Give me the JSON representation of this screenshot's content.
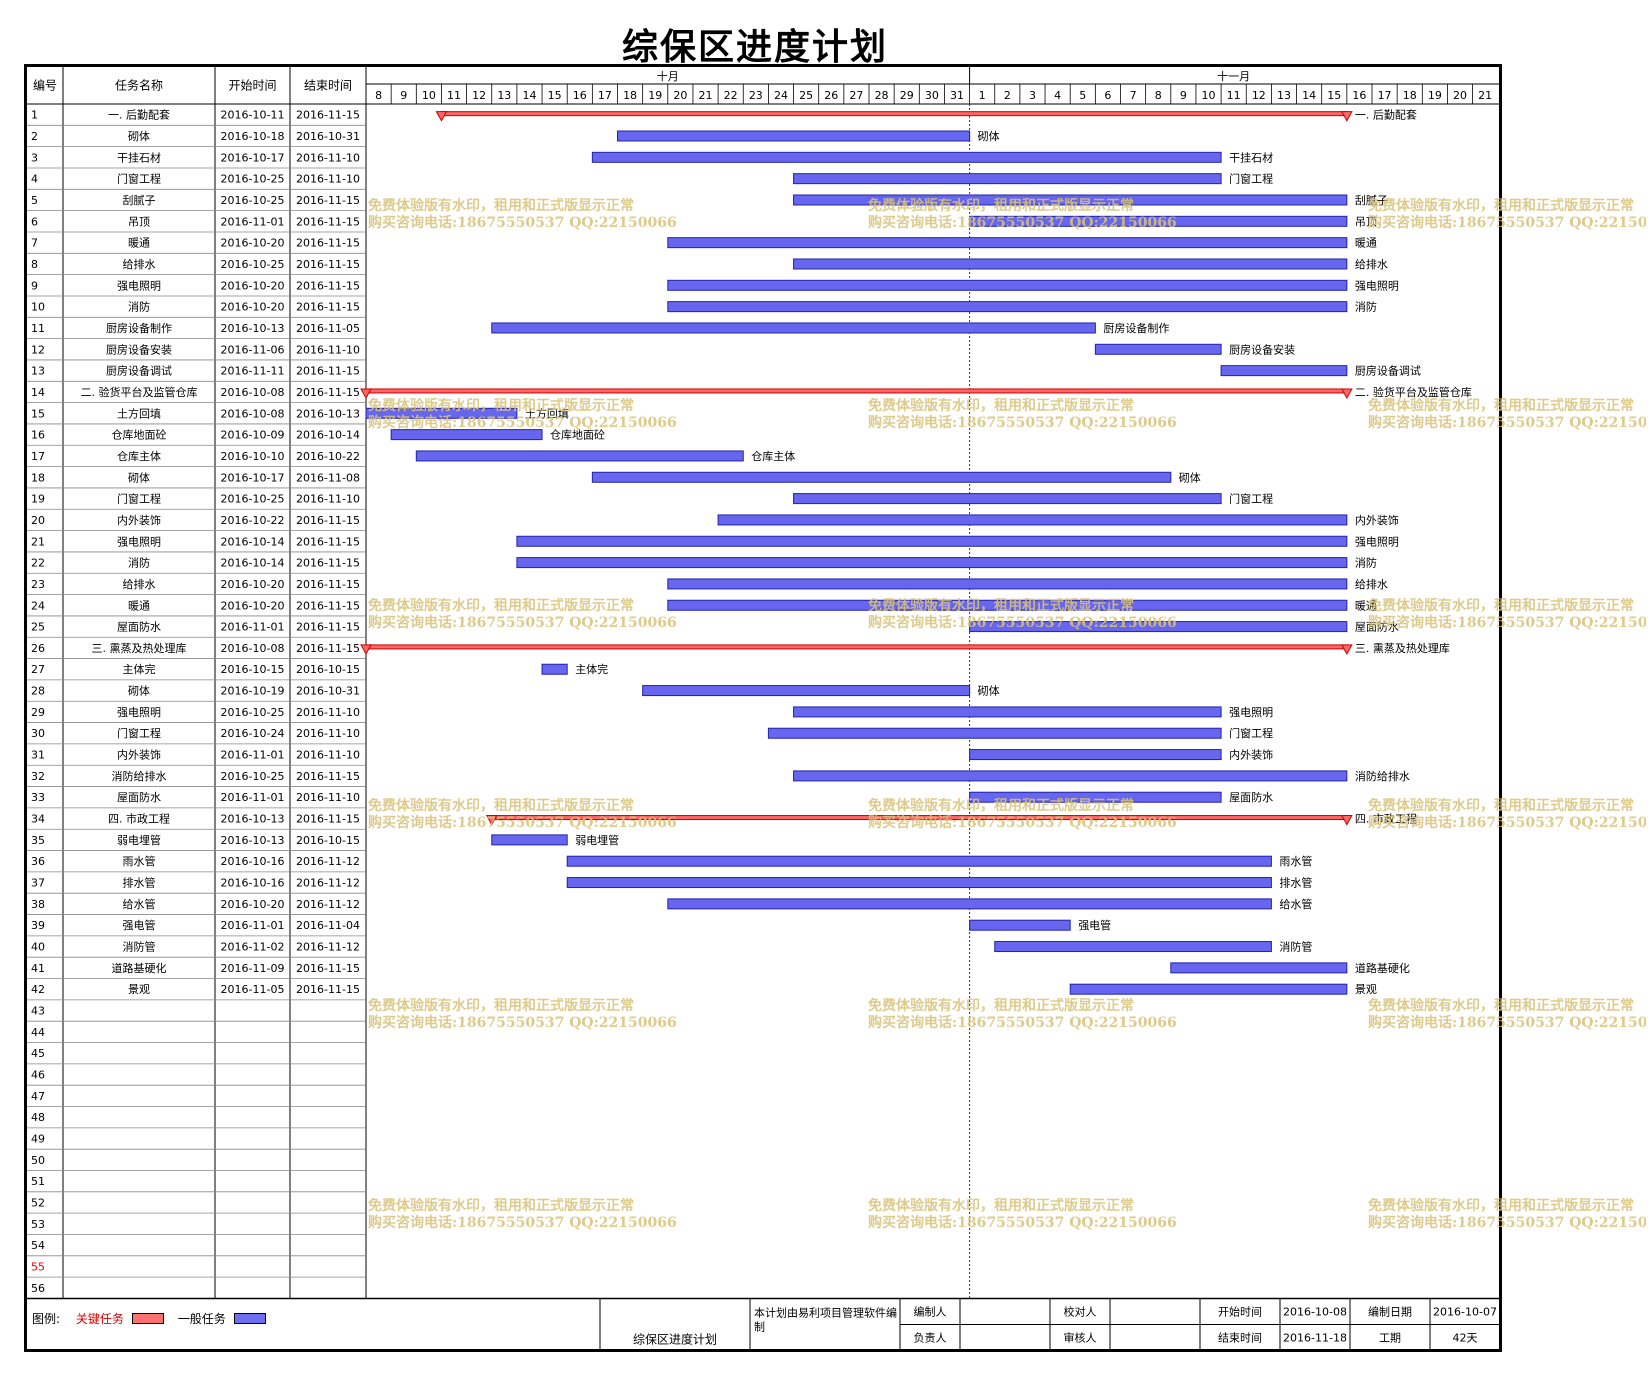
{
  "title": "综保区进度计划",
  "columns": {
    "no": "编号",
    "name": "任务名称",
    "start": "开始时间",
    "end": "结束时间"
  },
  "months": [
    {
      "label": "十月",
      "days": [
        "8",
        "9",
        "10",
        "11",
        "12",
        "13",
        "14",
        "15",
        "16",
        "17",
        "18",
        "19",
        "20",
        "21",
        "22",
        "23",
        "24",
        "25",
        "26",
        "27",
        "28",
        "29",
        "30",
        "31"
      ]
    },
    {
      "label": "十一月",
      "days": [
        "1",
        "2",
        "3",
        "4",
        "5",
        "6",
        "7",
        "8",
        "9",
        "10",
        "11",
        "12",
        "13",
        "14",
        "15",
        "16",
        "17",
        "18",
        "19",
        "20",
        "21"
      ]
    }
  ],
  "colors": {
    "critical": "#ff6666",
    "normal": "#6666ee",
    "grid": "#888888"
  },
  "tasks": [
    {
      "no": "1",
      "name": "一. 后勤配套",
      "start": "2016-10-11",
      "end": "2016-11-15",
      "type": "summary"
    },
    {
      "no": "2",
      "name": "砌体",
      "start": "2016-10-18",
      "end": "2016-10-31",
      "type": "task"
    },
    {
      "no": "3",
      "name": "干挂石材",
      "start": "2016-10-17",
      "end": "2016-11-10",
      "type": "task"
    },
    {
      "no": "4",
      "name": "门窗工程",
      "start": "2016-10-25",
      "end": "2016-11-10",
      "type": "task"
    },
    {
      "no": "5",
      "name": "刮腻子",
      "start": "2016-10-25",
      "end": "2016-11-15",
      "type": "task"
    },
    {
      "no": "6",
      "name": "吊顶",
      "start": "2016-11-01",
      "end": "2016-11-15",
      "type": "task"
    },
    {
      "no": "7",
      "name": "暖通",
      "start": "2016-10-20",
      "end": "2016-11-15",
      "type": "task"
    },
    {
      "no": "8",
      "name": "给排水",
      "start": "2016-10-25",
      "end": "2016-11-15",
      "type": "task"
    },
    {
      "no": "9",
      "name": "强电照明",
      "start": "2016-10-20",
      "end": "2016-11-15",
      "type": "task"
    },
    {
      "no": "10",
      "name": "消防",
      "start": "2016-10-20",
      "end": "2016-11-15",
      "type": "task"
    },
    {
      "no": "11",
      "name": "厨房设备制作",
      "start": "2016-10-13",
      "end": "2016-11-05",
      "type": "task"
    },
    {
      "no": "12",
      "name": "厨房设备安装",
      "start": "2016-11-06",
      "end": "2016-11-10",
      "type": "task"
    },
    {
      "no": "13",
      "name": "厨房设备调试",
      "start": "2016-11-11",
      "end": "2016-11-15",
      "type": "task"
    },
    {
      "no": "14",
      "name": "二. 验货平台及监管仓库",
      "start": "2016-10-08",
      "end": "2016-11-15",
      "type": "summary"
    },
    {
      "no": "15",
      "name": "土方回填",
      "start": "2016-10-08",
      "end": "2016-10-13",
      "type": "task"
    },
    {
      "no": "16",
      "name": "仓库地面砼",
      "start": "2016-10-09",
      "end": "2016-10-14",
      "type": "task"
    },
    {
      "no": "17",
      "name": "仓库主体",
      "start": "2016-10-10",
      "end": "2016-10-22",
      "type": "task"
    },
    {
      "no": "18",
      "name": "砌体",
      "start": "2016-10-17",
      "end": "2016-11-08",
      "type": "task"
    },
    {
      "no": "19",
      "name": "门窗工程",
      "start": "2016-10-25",
      "end": "2016-11-10",
      "type": "task"
    },
    {
      "no": "20",
      "name": "内外装饰",
      "start": "2016-10-22",
      "end": "2016-11-15",
      "type": "task"
    },
    {
      "no": "21",
      "name": "强电照明",
      "start": "2016-10-14",
      "end": "2016-11-15",
      "type": "task"
    },
    {
      "no": "22",
      "name": "消防",
      "start": "2016-10-14",
      "end": "2016-11-15",
      "type": "task"
    },
    {
      "no": "23",
      "name": "给排水",
      "start": "2016-10-20",
      "end": "2016-11-15",
      "type": "task"
    },
    {
      "no": "24",
      "name": "暖通",
      "start": "2016-10-20",
      "end": "2016-11-15",
      "type": "task"
    },
    {
      "no": "25",
      "name": "屋面防水",
      "start": "2016-11-01",
      "end": "2016-11-15",
      "type": "task"
    },
    {
      "no": "26",
      "name": "三. 熏蒸及热处理库",
      "start": "2016-10-08",
      "end": "2016-11-15",
      "type": "summary"
    },
    {
      "no": "27",
      "name": "主体完",
      "start": "2016-10-15",
      "end": "2016-10-15",
      "type": "task"
    },
    {
      "no": "28",
      "name": "砌体",
      "start": "2016-10-19",
      "end": "2016-10-31",
      "type": "task"
    },
    {
      "no": "29",
      "name": "强电照明",
      "start": "2016-10-25",
      "end": "2016-11-10",
      "type": "task"
    },
    {
      "no": "30",
      "name": "门窗工程",
      "start": "2016-10-24",
      "end": "2016-11-10",
      "type": "task"
    },
    {
      "no": "31",
      "name": "内外装饰",
      "start": "2016-11-01",
      "end": "2016-11-10",
      "type": "task"
    },
    {
      "no": "32",
      "name": "消防给排水",
      "start": "2016-10-25",
      "end": "2016-11-15",
      "type": "task"
    },
    {
      "no": "33",
      "name": "屋面防水",
      "start": "2016-11-01",
      "end": "2016-11-10",
      "type": "task"
    },
    {
      "no": "34",
      "name": "四. 市政工程",
      "start": "2016-10-13",
      "end": "2016-11-15",
      "type": "summary"
    },
    {
      "no": "35",
      "name": "弱电埋管",
      "start": "2016-10-13",
      "end": "2016-10-15",
      "type": "task"
    },
    {
      "no": "36",
      "name": "雨水管",
      "start": "2016-10-16",
      "end": "2016-11-12",
      "type": "task"
    },
    {
      "no": "37",
      "name": "排水管",
      "start": "2016-10-16",
      "end": "2016-11-12",
      "type": "task"
    },
    {
      "no": "38",
      "name": "给水管",
      "start": "2016-10-20",
      "end": "2016-11-12",
      "type": "task"
    },
    {
      "no": "39",
      "name": "强电管",
      "start": "2016-11-01",
      "end": "2016-11-04",
      "type": "task"
    },
    {
      "no": "40",
      "name": "消防管",
      "start": "2016-11-02",
      "end": "2016-11-12",
      "type": "task"
    },
    {
      "no": "41",
      "name": "道路基硬化",
      "start": "2016-11-09",
      "end": "2016-11-15",
      "type": "task"
    },
    {
      "no": "42",
      "name": "景观",
      "start": "2016-11-05",
      "end": "2016-11-15",
      "type": "task"
    }
  ],
  "empty_rows": [
    "43",
    "44",
    "45",
    "46",
    "47",
    "48",
    "49",
    "50",
    "51",
    "52",
    "53",
    "54",
    "55",
    "56"
  ],
  "highlight_row": "55",
  "watermark": {
    "line1": "免费体验版有水印，租用和正式版显示正常",
    "line2": "购买咨询电话:18675550537 QQ:22150066"
  },
  "legend": {
    "label": "图例:",
    "critical": "关键任务",
    "normal": "一般任务"
  },
  "footer": {
    "plan_name": "综保区进度计划",
    "made_by_note": "本计划由易利项目管理软件编制",
    "editor_label": "编制人",
    "editor": "",
    "checker_label": "校对人",
    "checker": "",
    "start_label": "开始时间",
    "start": "2016-10-08",
    "date_label": "编制日期",
    "date": "2016-10-07",
    "owner_label": "负责人",
    "owner": "",
    "reviewer_label": "审核人",
    "reviewer": "",
    "end_label": "结束时间",
    "end": "2016-11-18",
    "duration_label": "工期",
    "duration": "42天"
  }
}
